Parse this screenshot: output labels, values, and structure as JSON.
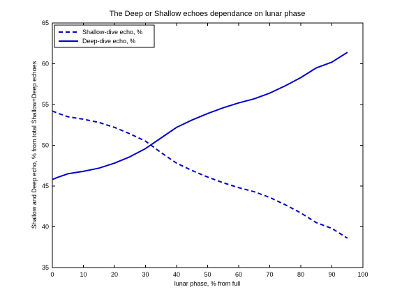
{
  "chart_data": {
    "type": "line",
    "title": "The Deep or Shallow echoes dependance on lunar phase",
    "xlabel": "lunar phase, % from full",
    "ylabel": "Shallow and Deep echo, % from total Shallow+Deep echoes",
    "xlim": [
      0,
      100
    ],
    "ylim": [
      35,
      65
    ],
    "xticks": [
      "0",
      "10",
      "20",
      "30",
      "40",
      "50",
      "60",
      "70",
      "80",
      "90",
      "100"
    ],
    "yticks": [
      "35",
      "40",
      "45",
      "50",
      "55",
      "60",
      "65"
    ],
    "grid": false,
    "legend_position": "top-left",
    "series": [
      {
        "name": "Shallow-dive echo, %",
        "line_style": "dashed",
        "color": "#0000cc",
        "x": [
          0,
          2,
          5,
          10,
          15,
          20,
          25,
          30,
          35,
          40,
          45,
          50,
          55,
          60,
          65,
          70,
          75,
          80,
          85,
          90,
          95
        ],
        "y": [
          54.2,
          53.9,
          53.5,
          53.2,
          52.8,
          52.2,
          51.4,
          50.5,
          49.1,
          47.8,
          46.9,
          46.1,
          45.4,
          44.8,
          44.3,
          43.6,
          42.7,
          41.7,
          40.5,
          39.8,
          38.6
        ]
      },
      {
        "name": "Deep-dive echo, %",
        "line_style": "solid",
        "color": "#0000cc",
        "x": [
          0,
          2,
          5,
          10,
          15,
          20,
          25,
          30,
          35,
          40,
          45,
          50,
          55,
          60,
          65,
          70,
          75,
          80,
          85,
          90,
          95
        ],
        "y": [
          45.8,
          46.1,
          46.5,
          46.8,
          47.2,
          47.8,
          48.6,
          49.6,
          50.9,
          52.2,
          53.1,
          53.9,
          54.6,
          55.2,
          55.7,
          56.4,
          57.3,
          58.3,
          59.5,
          60.2,
          61.4
        ]
      }
    ]
  }
}
